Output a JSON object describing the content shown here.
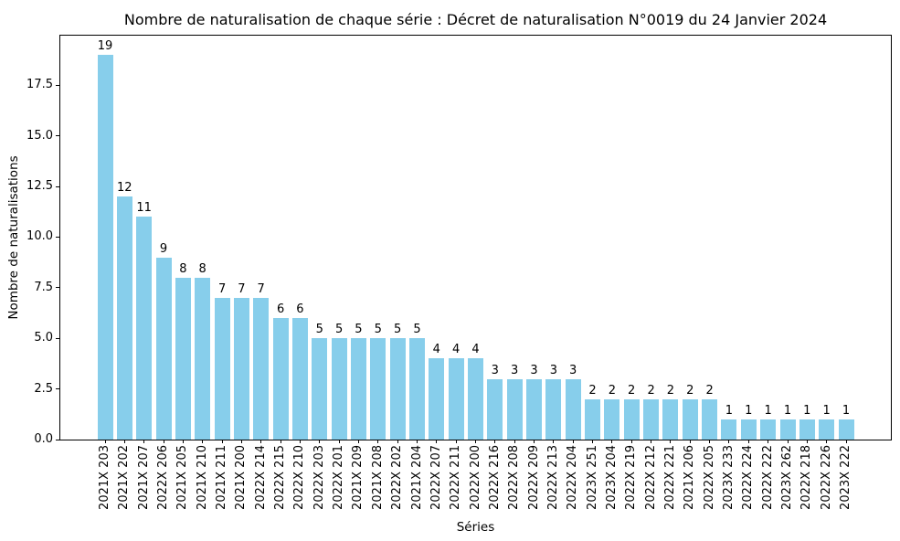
{
  "chart_data": {
    "type": "bar",
    "title": "Nombre de naturalisation de chaque série : Décret de naturalisation N°0019 du 24 Janvier 2024",
    "xlabel": "Séries",
    "ylabel": "Nombre de naturalisations",
    "categories": [
      "2021X 203",
      "2021X 202",
      "2021X 207",
      "2022X 206",
      "2021X 205",
      "2021X 210",
      "2021X 211",
      "2021X 200",
      "2022X 214",
      "2022X 215",
      "2022X 210",
      "2022X 203",
      "2022X 201",
      "2021X 209",
      "2021X 208",
      "2022X 202",
      "2021X 204",
      "2022X 207",
      "2022X 211",
      "2022X 200",
      "2022X 216",
      "2022X 208",
      "2022X 209",
      "2022X 213",
      "2022X 204",
      "2023X 251",
      "2023X 204",
      "2022X 219",
      "2022X 212",
      "2022X 221",
      "2021X 206",
      "2022X 205",
      "2023X 233",
      "2022X 224",
      "2022X 222",
      "2023X 262",
      "2022X 218",
      "2022X 226",
      "2023X 222"
    ],
    "values": [
      19,
      12,
      11,
      9,
      8,
      8,
      7,
      7,
      7,
      6,
      6,
      5,
      5,
      5,
      5,
      5,
      5,
      4,
      4,
      4,
      3,
      3,
      3,
      3,
      3,
      2,
      2,
      2,
      2,
      2,
      2,
      2,
      1,
      1,
      1,
      1,
      1,
      1,
      1
    ],
    "value_labels_shown": true,
    "ytick_labels": [
      "0.0",
      "2.5",
      "5.0",
      "7.5",
      "10.0",
      "12.5",
      "15.0",
      "17.5"
    ],
    "ylim": [
      0,
      19.95
    ],
    "grid": false,
    "legend": "none",
    "bar_color": "#87CEEB",
    "axis_color": "#000000",
    "background_color": "#ffffff"
  }
}
